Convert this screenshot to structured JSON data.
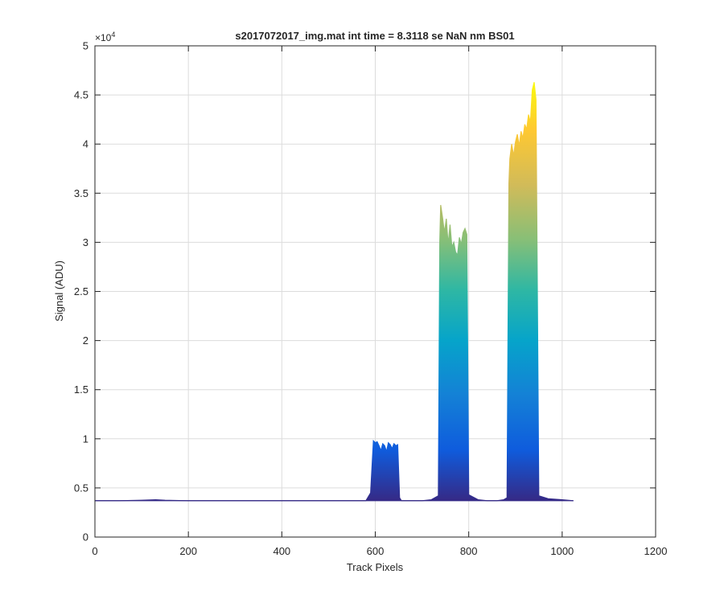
{
  "chart_data": {
    "type": "area",
    "title": "s2017072017_img.mat int time = 8.3118 se  NaN nm BS01",
    "xlabel": "Track Pixels",
    "ylabel": "Signal (ADU)",
    "y_exponent_label": "×10",
    "y_exponent_power": "4",
    "xlim": [
      0,
      1200
    ],
    "ylim": [
      0,
      50000
    ],
    "xticks": [
      0,
      200,
      400,
      600,
      800,
      1000,
      1200
    ],
    "yticks": [
      0,
      5000,
      10000,
      15000,
      20000,
      25000,
      30000,
      35000,
      40000,
      45000,
      50000
    ],
    "xtick_labels": [
      "0",
      "200",
      "400",
      "600",
      "800",
      "1000",
      "1200"
    ],
    "ytick_labels": [
      "0",
      "0.5",
      "1",
      "1.5",
      "2",
      "2.5",
      "3",
      "3.5",
      "4",
      "4.5",
      "5"
    ],
    "grid": true,
    "colormap": "parula",
    "baseline_signal": 3700,
    "series": [
      {
        "x": [
          0,
          50,
          100,
          130,
          150,
          200,
          250,
          300,
          350,
          400,
          450,
          500,
          550,
          580,
          590,
          596,
          600,
          604,
          608,
          612,
          616,
          620,
          624,
          628,
          632,
          636,
          640,
          644,
          648,
          652,
          656,
          660,
          680,
          700,
          720,
          735,
          738,
          740,
          744,
          748,
          752,
          756,
          760,
          764,
          768,
          772,
          776,
          780,
          784,
          788,
          792,
          796,
          800,
          820,
          840,
          860,
          875,
          882,
          886,
          888,
          892,
          896,
          900,
          904,
          908,
          912,
          916,
          920,
          924,
          928,
          932,
          936,
          940,
          944,
          950,
          970,
          1000,
          1024
        ],
        "y": [
          3700,
          3700,
          3750,
          3800,
          3750,
          3700,
          3700,
          3700,
          3700,
          3700,
          3700,
          3700,
          3700,
          3700,
          4500,
          9800,
          9600,
          9700,
          9300,
          8800,
          9500,
          9300,
          8700,
          9600,
          9400,
          9000,
          9500,
          9300,
          9400,
          4000,
          3700,
          3700,
          3700,
          3700,
          3800,
          4200,
          30000,
          33800,
          32500,
          31000,
          32400,
          29800,
          31800,
          29500,
          30000,
          29000,
          28700,
          30500,
          29800,
          31000,
          31400,
          30800,
          4300,
          3800,
          3700,
          3700,
          3800,
          4000,
          36000,
          38500,
          40000,
          38800,
          40200,
          41000,
          39800,
          41300,
          40600,
          42000,
          41500,
          43000,
          42200,
          45500,
          46300,
          44500,
          4200,
          3900,
          3800,
          3700
        ]
      }
    ]
  }
}
